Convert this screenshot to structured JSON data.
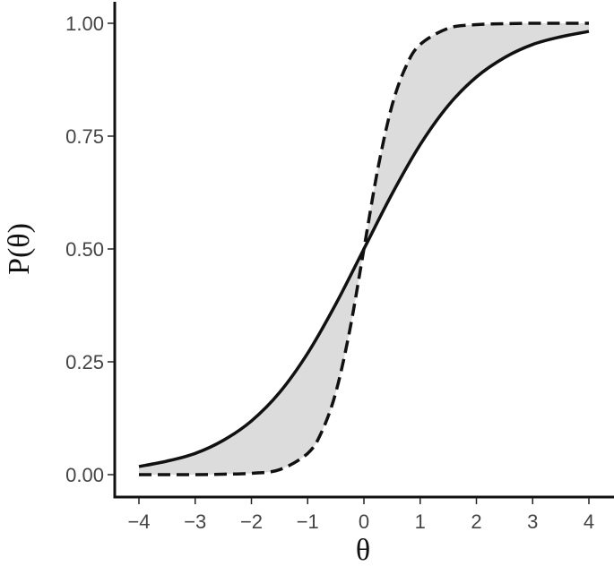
{
  "chart_data": {
    "type": "line",
    "title": "",
    "xlabel": "θ",
    "ylabel": "P(θ)",
    "xlim": [
      -4,
      4
    ],
    "ylim": [
      0,
      1
    ],
    "x_ticks": [
      -4,
      -3,
      -2,
      -1,
      0,
      1,
      2,
      3,
      4
    ],
    "x_tick_labels": [
      "−4",
      "−3",
      "−2",
      "−1",
      "0",
      "1",
      "2",
      "3",
      "4"
    ],
    "y_ticks": [
      0,
      0.25,
      0.5,
      0.75,
      1.0
    ],
    "y_tick_labels": [
      "0.00",
      "0.25",
      "0.50",
      "0.75",
      "1.00"
    ],
    "grid": false,
    "band_color": "#dcdcdc",
    "line_color": "#111111",
    "series": [
      {
        "style": "solid",
        "x": [
          -4,
          -3.5,
          -3,
          -2.5,
          -2,
          -1.5,
          -1,
          -0.5,
          0,
          0.5,
          1,
          1.5,
          2,
          2.5,
          3,
          3.5,
          4
        ],
        "values": [
          0.018,
          0.03,
          0.047,
          0.076,
          0.119,
          0.182,
          0.269,
          0.378,
          0.5,
          0.622,
          0.731,
          0.818,
          0.881,
          0.924,
          0.953,
          0.97,
          0.982
        ]
      },
      {
        "style": "dashed",
        "x": [
          -4,
          -3.5,
          -3,
          -2.5,
          -2,
          -1.5,
          -1,
          -0.75,
          -0.5,
          -0.25,
          0,
          0.25,
          0.5,
          0.75,
          1,
          1.5,
          2,
          2.5,
          3,
          3.5,
          4
        ],
        "values": [
          0.0,
          0.0,
          0.0,
          0.001,
          0.003,
          0.011,
          0.047,
          0.095,
          0.182,
          0.321,
          0.5,
          0.679,
          0.818,
          0.905,
          0.953,
          0.989,
          0.997,
          0.999,
          1.0,
          1.0,
          1.0
        ]
      }
    ],
    "shaded_region": "between series"
  }
}
